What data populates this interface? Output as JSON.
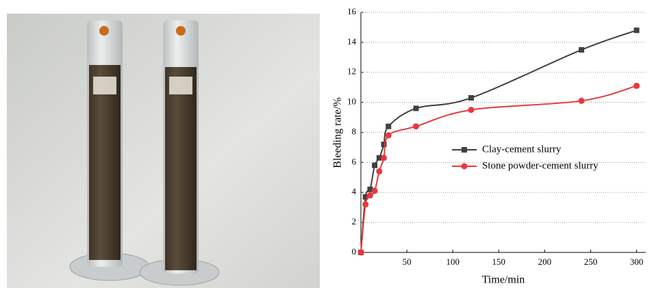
{
  "chart_data": {
    "type": "scatter",
    "x_label": "Time/min",
    "y_label": "Bleeding rate/%",
    "xlim": [
      0,
      310
    ],
    "ylim": [
      0,
      16
    ],
    "xticks": [
      50,
      100,
      150,
      200,
      250,
      300
    ],
    "yticks": [
      0,
      2,
      4,
      6,
      8,
      10,
      12,
      14,
      16
    ],
    "grid": true,
    "legend_position": "center right",
    "series": [
      {
        "name": "Clay-cement slurry",
        "color": "#404040",
        "marker": "square",
        "x": [
          0,
          5,
          10,
          15,
          20,
          25,
          30,
          60,
          120,
          240,
          300
        ],
        "values": [
          0,
          3.7,
          4.2,
          5.8,
          6.3,
          7.2,
          8.4,
          9.6,
          10.3,
          13.5,
          14.8
        ]
      },
      {
        "name": "Stone powder-cement slurry",
        "color": "#e8383d",
        "marker": "circle",
        "x": [
          0,
          5,
          10,
          15,
          20,
          25,
          30,
          60,
          120,
          240,
          300
        ],
        "values": [
          0,
          3.2,
          3.8,
          4.1,
          5.4,
          6.3,
          7.8,
          8.4,
          9.5,
          10.1,
          11.1
        ]
      }
    ]
  }
}
